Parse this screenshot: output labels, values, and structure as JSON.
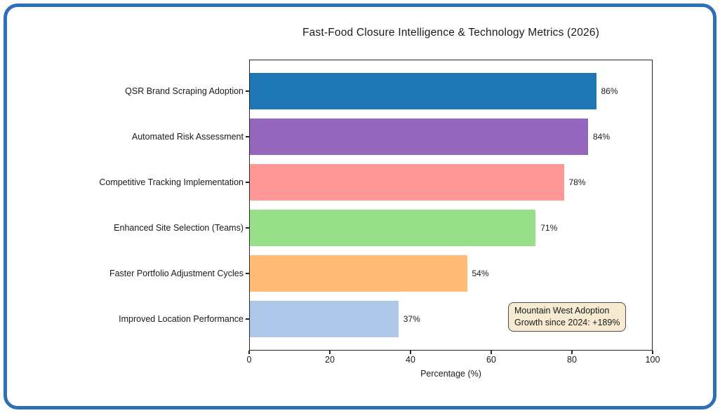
{
  "frame": {
    "border_color": "#2e6fb7"
  },
  "chart_data": {
    "type": "bar",
    "orientation": "horizontal",
    "title": "Fast-Food Closure Intelligence & Technology Metrics (2026)",
    "xlabel": "Percentage (%)",
    "ylabel": "",
    "categories": [
      "QSR Brand Scraping Adoption",
      "Automated Risk Assessment",
      "Competitive Tracking Implementation",
      "Enhanced Site Selection (Teams)",
      "Faster Portfolio Adjustment Cycles",
      "Improved Location Performance"
    ],
    "values": [
      86,
      84,
      78,
      71,
      54,
      37
    ],
    "value_labels": [
      "86%",
      "84%",
      "78%",
      "71%",
      "54%",
      "37%"
    ],
    "bar_colors": [
      "#1f77b4",
      "#9467bd",
      "#ff9896",
      "#98df8a",
      "#ffbb78",
      "#aec7e8"
    ],
    "xlim": [
      0,
      100
    ],
    "xticks": [
      0,
      20,
      40,
      60,
      80,
      100
    ],
    "xtick_labels": [
      "0",
      "20",
      "40",
      "60",
      "80",
      "100"
    ],
    "grid": false,
    "legend": "none",
    "annotation": {
      "lines": [
        "Mountain West Adoption",
        "Growth since 2024: +189%"
      ],
      "background": "#f6ead0",
      "border_color": "#4d4d4d"
    }
  }
}
